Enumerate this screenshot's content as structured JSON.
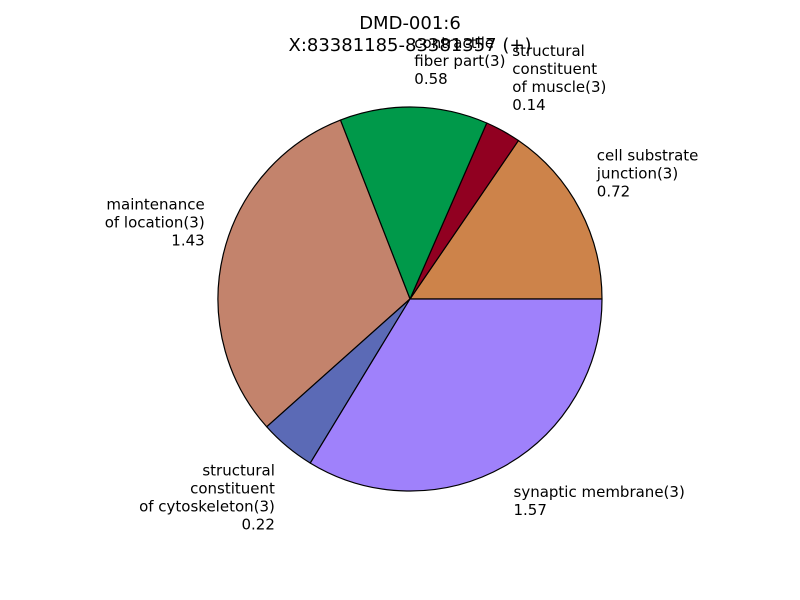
{
  "chart_data": {
    "type": "pie",
    "title": [
      "DMD-001:6",
      "X:83381185-83381357 (+)"
    ],
    "start_angle_deg": 0,
    "direction": "counterclockwise",
    "edge_color": "#000000",
    "slices": [
      {
        "label": [
          "cell substrate",
          "junction(3)"
        ],
        "value": 0.72,
        "color": "#cd834a"
      },
      {
        "label": [
          "structural",
          "constituent",
          "of muscle(3)"
        ],
        "value": 0.14,
        "color": "#910021"
      },
      {
        "label": [
          "contractile",
          "fiber part(3)"
        ],
        "value": 0.58,
        "color": "#00994a"
      },
      {
        "label": [
          "maintenance",
          "of location(3)"
        ],
        "value": 1.43,
        "color": "#c3836c"
      },
      {
        "label": [
          "structural",
          "constituent",
          "of cytoskeleton(3)"
        ],
        "value": 0.22,
        "color": "#5b6ab6"
      },
      {
        "label": [
          "synaptic membrane(3)"
        ],
        "value": 1.57,
        "color": "#9f81fb"
      }
    ]
  }
}
